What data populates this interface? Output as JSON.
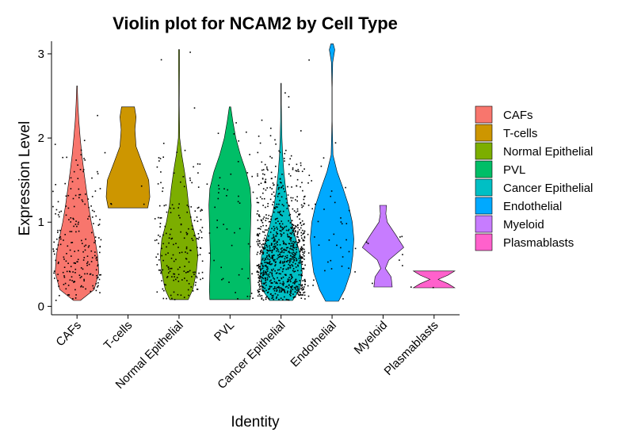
{
  "chart_data": {
    "type": "violin",
    "title": "Violin plot for NCAM2 by Cell Type",
    "xlabel": "Identity",
    "ylabel": "Expression Level",
    "ylim": [
      -0.1,
      3.15
    ],
    "yticks": [
      0,
      1,
      2,
      3
    ],
    "grid": false,
    "legend_position": "right",
    "categories": [
      "CAFs",
      "T-cells",
      "Normal Epithelial",
      "PVL",
      "Cancer Epithelial",
      "Endothelial",
      "Myeloid",
      "Plasmablasts"
    ],
    "series": [
      {
        "name": "CAFs",
        "color": "#F8766D",
        "min": 0.07,
        "max": 2.62,
        "n_points": 220,
        "profile": [
          [
            0.07,
            0.15
          ],
          [
            0.2,
            0.75
          ],
          [
            0.4,
            0.95
          ],
          [
            0.6,
            0.9
          ],
          [
            0.8,
            0.78
          ],
          [
            1.0,
            0.62
          ],
          [
            1.2,
            0.5
          ],
          [
            1.4,
            0.4
          ],
          [
            1.6,
            0.3
          ],
          [
            1.8,
            0.21
          ],
          [
            2.0,
            0.14
          ],
          [
            2.2,
            0.08
          ],
          [
            2.4,
            0.04
          ],
          [
            2.62,
            0.01
          ]
        ]
      },
      {
        "name": "T-cells",
        "color": "#CD9600",
        "min": 1.17,
        "max": 2.37,
        "n_points": 5,
        "profile": [
          [
            1.17,
            0.86
          ],
          [
            1.3,
            0.95
          ],
          [
            1.5,
            0.9
          ],
          [
            1.7,
            0.62
          ],
          [
            1.9,
            0.35
          ],
          [
            2.1,
            0.3
          ],
          [
            2.25,
            0.35
          ],
          [
            2.37,
            0.28
          ]
        ]
      },
      {
        "name": "Normal Epithelial",
        "color": "#7CAE00",
        "min": 0.08,
        "max": 3.05,
        "n_points": 200,
        "profile": [
          [
            0.08,
            0.4
          ],
          [
            0.2,
            0.6
          ],
          [
            0.4,
            0.75
          ],
          [
            0.6,
            0.82
          ],
          [
            0.8,
            0.75
          ],
          [
            1.0,
            0.55
          ],
          [
            1.2,
            0.42
          ],
          [
            1.4,
            0.34
          ],
          [
            1.6,
            0.24
          ],
          [
            1.8,
            0.12
          ],
          [
            2.0,
            0.03
          ],
          [
            2.4,
            0.01
          ],
          [
            2.8,
            0.02
          ],
          [
            3.05,
            0.02
          ]
        ]
      },
      {
        "name": "PVL",
        "color": "#00BE67",
        "min": 0.08,
        "max": 2.37,
        "n_points": 50,
        "profile": [
          [
            0.08,
            0.88
          ],
          [
            0.2,
            0.9
          ],
          [
            0.4,
            0.88
          ],
          [
            0.6,
            0.86
          ],
          [
            0.8,
            0.88
          ],
          [
            1.0,
            0.9
          ],
          [
            1.2,
            0.92
          ],
          [
            1.4,
            0.88
          ],
          [
            1.6,
            0.7
          ],
          [
            1.8,
            0.45
          ],
          [
            2.0,
            0.25
          ],
          [
            2.2,
            0.12
          ],
          [
            2.37,
            0.03
          ]
        ]
      },
      {
        "name": "Cancer Epithelial",
        "color": "#00BFC4",
        "min": 0.07,
        "max": 2.65,
        "n_points": 900,
        "profile": [
          [
            0.07,
            0.5
          ],
          [
            0.2,
            0.82
          ],
          [
            0.4,
            0.92
          ],
          [
            0.6,
            0.85
          ],
          [
            0.8,
            0.65
          ],
          [
            1.0,
            0.45
          ],
          [
            1.2,
            0.3
          ],
          [
            1.4,
            0.2
          ],
          [
            1.6,
            0.12
          ],
          [
            1.8,
            0.07
          ],
          [
            2.0,
            0.04
          ],
          [
            2.2,
            0.02
          ],
          [
            2.4,
            0.01
          ],
          [
            2.65,
            0.01
          ]
        ]
      },
      {
        "name": "Endothelial",
        "color": "#00A9FF",
        "min": 0.06,
        "max": 3.12,
        "n_points": 45,
        "profile": [
          [
            0.06,
            0.28
          ],
          [
            0.2,
            0.55
          ],
          [
            0.4,
            0.8
          ],
          [
            0.6,
            0.9
          ],
          [
            0.8,
            0.95
          ],
          [
            1.0,
            0.88
          ],
          [
            1.2,
            0.72
          ],
          [
            1.4,
            0.48
          ],
          [
            1.6,
            0.22
          ],
          [
            1.8,
            0.04
          ],
          [
            2.2,
            0.005
          ],
          [
            2.6,
            0.005
          ],
          [
            2.9,
            0.03
          ],
          [
            3.05,
            0.12
          ],
          [
            3.12,
            0.05
          ]
        ]
      },
      {
        "name": "Myeloid",
        "color": "#C77CFF",
        "min": 0.23,
        "max": 1.2,
        "n_points": 8,
        "profile": [
          [
            0.23,
            0.4
          ],
          [
            0.35,
            0.35
          ],
          [
            0.45,
            0.1
          ],
          [
            0.55,
            0.25
          ],
          [
            0.7,
            0.9
          ],
          [
            0.85,
            0.55
          ],
          [
            1.0,
            0.18
          ],
          [
            1.1,
            0.12
          ],
          [
            1.2,
            0.15
          ]
        ]
      },
      {
        "name": "Plasmablasts",
        "color": "#FF61CC",
        "min": 0.22,
        "max": 0.42,
        "n_points": 2,
        "profile": [
          [
            0.22,
            0.9
          ],
          [
            0.27,
            0.6
          ],
          [
            0.32,
            0.18
          ],
          [
            0.37,
            0.6
          ],
          [
            0.42,
            0.9
          ]
        ]
      }
    ]
  }
}
